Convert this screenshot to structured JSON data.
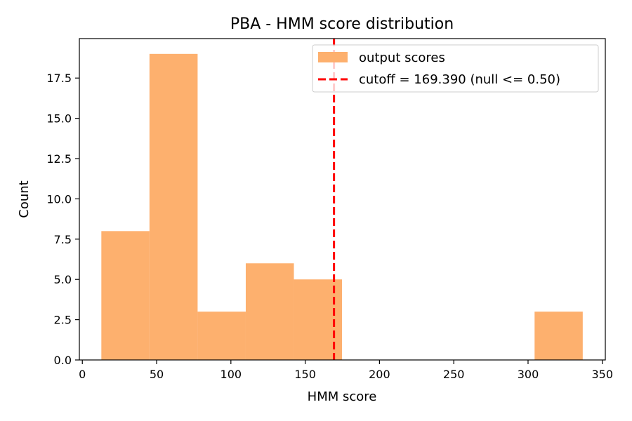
{
  "chart_data": {
    "type": "bar",
    "title": "PBA - HMM score distribution",
    "xlabel": "HMM score",
    "ylabel": "Count",
    "xlim": [
      -2,
      352
    ],
    "ylim": [
      0,
      19.95
    ],
    "bins": [
      {
        "x0": 12.8,
        "x1": 45.2,
        "count": 8
      },
      {
        "x0": 45.2,
        "x1": 77.6,
        "count": 19
      },
      {
        "x0": 77.6,
        "x1": 110.0,
        "count": 3
      },
      {
        "x0": 110.0,
        "x1": 142.4,
        "count": 6
      },
      {
        "x0": 142.4,
        "x1": 174.8,
        "count": 5
      },
      {
        "x0": 174.8,
        "x1": 207.2,
        "count": 0
      },
      {
        "x0": 207.2,
        "x1": 239.6,
        "count": 0
      },
      {
        "x0": 239.6,
        "x1": 272.0,
        "count": 0
      },
      {
        "x0": 272.0,
        "x1": 304.4,
        "count": 0
      },
      {
        "x0": 304.4,
        "x1": 336.8,
        "count": 3
      }
    ],
    "xticks": [
      0,
      50,
      100,
      150,
      200,
      250,
      300,
      350
    ],
    "xtick_labels": [
      "0",
      "50",
      "100",
      "150",
      "200",
      "250",
      "300",
      "350"
    ],
    "yticks": [
      0,
      2.5,
      5,
      7.5,
      10,
      12.5,
      15,
      17.5
    ],
    "ytick_labels": [
      "0.0",
      "2.5",
      "5.0",
      "7.5",
      "10.0",
      "12.5",
      "15.0",
      "17.5"
    ],
    "cutoff": 169.39,
    "series": [
      {
        "name": "output scores",
        "color": "#fdb06e"
      },
      {
        "name": "cutoff = 169.390 (null <= 0.50)",
        "color": "#ff0000"
      }
    ],
    "legend_position": "top-right",
    "grid": false
  }
}
